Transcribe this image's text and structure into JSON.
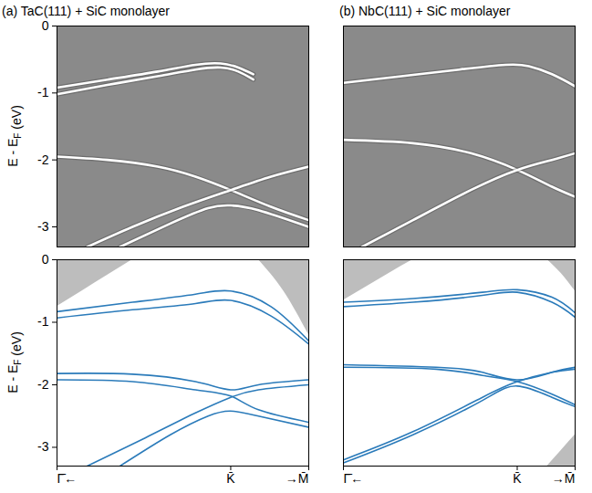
{
  "chart_data": [
    {
      "type": "line",
      "title": "(a) TaC(111) + SiC monolayer",
      "ylabel": "E - EF (eV)",
      "xlim": [
        0,
        1
      ],
      "ylim": [
        -3.3,
        0
      ],
      "yticks": [
        0,
        -1,
        -2,
        -3
      ],
      "tick_labels": "y",
      "series": [
        {
          "color": "#ffffff",
          "x": [
            0,
            0.2,
            0.4,
            0.55,
            0.65,
            0.72,
            0.78
          ],
          "values": [
            -1.02,
            -0.88,
            -0.75,
            -0.65,
            -0.62,
            -0.68,
            -0.8
          ]
        },
        {
          "color": "#ffffff",
          "x": [
            0,
            0.2,
            0.4,
            0.55,
            0.65,
            0.72,
            0.78
          ],
          "values": [
            -0.92,
            -0.8,
            -0.68,
            -0.58,
            -0.56,
            -0.62,
            -0.72
          ]
        },
        {
          "color": "#ffffff",
          "x": [
            0,
            0.2,
            0.4,
            0.55,
            0.69,
            0.85,
            1
          ],
          "values": [
            -1.95,
            -2.0,
            -2.1,
            -2.25,
            -2.45,
            -2.7,
            -2.9
          ]
        },
        {
          "color": "#ffffff",
          "x": [
            0.12,
            0.3,
            0.5,
            0.69,
            0.85,
            1
          ],
          "values": [
            -3.3,
            -3.0,
            -2.7,
            -2.45,
            -2.25,
            -2.1
          ]
        },
        {
          "color": "#ffffff",
          "x": [
            0.25,
            0.45,
            0.6,
            0.69,
            0.8,
            1
          ],
          "values": [
            -3.3,
            -2.95,
            -2.72,
            -2.68,
            -2.75,
            -3.0
          ]
        }
      ]
    },
    {
      "type": "line",
      "title": "(b) NbC(111) + SiC monolayer",
      "xlim": [
        0,
        1
      ],
      "ylim": [
        -3.3,
        0
      ],
      "tick_labels": false,
      "series": [
        {
          "color": "#ffffff",
          "x": [
            0,
            0.25,
            0.5,
            0.7,
            0.8,
            0.9,
            1
          ],
          "values": [
            -0.85,
            -0.75,
            -0.65,
            -0.58,
            -0.6,
            -0.72,
            -0.9
          ]
        },
        {
          "color": "#ffffff",
          "x": [
            0,
            0.3,
            0.55,
            0.75,
            0.9,
            1
          ],
          "values": [
            -1.7,
            -1.75,
            -1.9,
            -2.15,
            -2.4,
            -2.55
          ]
        },
        {
          "color": "#ffffff",
          "x": [
            0.08,
            0.3,
            0.55,
            0.75,
            0.9,
            1
          ],
          "values": [
            -3.3,
            -2.9,
            -2.45,
            -2.15,
            -2.0,
            -1.9
          ]
        }
      ]
    },
    {
      "type": "line",
      "ylabel": "E - EF (eV)",
      "xlim": [
        0,
        1
      ],
      "ylim": [
        -3.3,
        0
      ],
      "xticks": [
        {
          "value": 0,
          "label": "Γ̄←"
        },
        {
          "value": 0.69,
          "label": "K̄"
        },
        {
          "value": 1,
          "label": "→M̄"
        }
      ],
      "yticks": [
        0,
        -1,
        -2,
        -3
      ],
      "series": [
        {
          "type": "area",
          "color": "#bdbdbd",
          "x": [
            0,
            0.1,
            0.2,
            0.3
          ],
          "values": [
            -0.75,
            -0.5,
            -0.25,
            0
          ],
          "base": [
            0,
            0,
            0,
            0
          ]
        },
        {
          "type": "area",
          "color": "#bdbdbd",
          "x": [
            0.8,
            0.9,
            1
          ],
          "values": [
            0,
            -0.5,
            -1.2
          ],
          "base": [
            0,
            0,
            0
          ]
        },
        {
          "color": "#2b7bba",
          "x": [
            0,
            0.3,
            0.55,
            0.69,
            0.85,
            1
          ],
          "values": [
            -0.83,
            -0.68,
            -0.55,
            -0.5,
            -0.75,
            -1.3
          ]
        },
        {
          "color": "#2b7bba",
          "x": [
            0,
            0.3,
            0.55,
            0.69,
            0.85,
            1
          ],
          "values": [
            -0.93,
            -0.8,
            -0.7,
            -0.65,
            -0.9,
            -1.35
          ]
        },
        {
          "color": "#2b7bba",
          "x": [
            0,
            0.3,
            0.55,
            0.69,
            0.8,
            1
          ],
          "values": [
            -1.82,
            -1.83,
            -1.95,
            -2.08,
            -2.0,
            -1.92
          ]
        },
        {
          "color": "#2b7bba",
          "x": [
            0,
            0.3,
            0.55,
            0.69,
            0.8,
            1
          ],
          "values": [
            -1.92,
            -1.95,
            -2.08,
            -2.18,
            -2.4,
            -2.6
          ]
        },
        {
          "color": "#2b7bba",
          "x": [
            0.12,
            0.35,
            0.55,
            0.69,
            0.8,
            1
          ],
          "values": [
            -3.3,
            -2.85,
            -2.45,
            -2.2,
            -2.08,
            -2.0
          ]
        },
        {
          "color": "#2b7bba",
          "x": [
            0.25,
            0.45,
            0.6,
            0.69,
            0.8,
            1
          ],
          "values": [
            -3.3,
            -2.8,
            -2.5,
            -2.42,
            -2.5,
            -2.68
          ]
        }
      ]
    },
    {
      "type": "line",
      "xlim": [
        0,
        1
      ],
      "ylim": [
        -3.3,
        0
      ],
      "xticks": [
        {
          "value": 0,
          "label": "Γ̄←"
        },
        {
          "value": 0.75,
          "label": "K̄"
        },
        {
          "value": 1,
          "label": "→M̄"
        }
      ],
      "tick_labels": "x",
      "series": [
        {
          "type": "area",
          "color": "#bdbdbd",
          "x": [
            0,
            0.1,
            0.2,
            0.3
          ],
          "values": [
            -0.65,
            -0.43,
            -0.21,
            0
          ],
          "base": [
            0,
            0,
            0,
            0
          ]
        },
        {
          "type": "area",
          "color": "#bdbdbd",
          "x": [
            0.88,
            0.94,
            1
          ],
          "values": [
            0,
            -0.22,
            -0.5
          ],
          "base": [
            0,
            0,
            0
          ]
        },
        {
          "type": "area",
          "color": "#bdbdbd",
          "x": [
            0.88,
            0.94,
            1
          ],
          "values": [
            -3.3,
            -3.05,
            -2.8
          ],
          "base": [
            -3.3,
            -3.3,
            -3.3
          ]
        },
        {
          "color": "#2b7bba",
          "x": [
            0,
            0.3,
            0.6,
            0.75,
            0.9,
            1
          ],
          "values": [
            -0.68,
            -0.62,
            -0.52,
            -0.48,
            -0.6,
            -0.85
          ]
        },
        {
          "color": "#2b7bba",
          "x": [
            0,
            0.3,
            0.6,
            0.75,
            0.9,
            1
          ],
          "values": [
            -0.75,
            -0.68,
            -0.57,
            -0.52,
            -0.68,
            -0.92
          ]
        },
        {
          "color": "#2b7bba",
          "x": [
            0,
            0.4,
            0.6,
            0.75,
            0.9,
            1
          ],
          "values": [
            -1.68,
            -1.72,
            -1.8,
            -1.92,
            -1.8,
            -1.72
          ]
        },
        {
          "color": "#2b7bba",
          "x": [
            0,
            0.4,
            0.6,
            0.75,
            0.9,
            1
          ],
          "values": [
            -1.72,
            -1.75,
            -1.85,
            -1.95,
            -2.15,
            -2.32
          ]
        },
        {
          "color": "#2b7bba",
          "x": [
            0,
            0.3,
            0.6,
            0.75,
            0.9,
            1
          ],
          "values": [
            -3.2,
            -2.75,
            -2.2,
            -1.95,
            -1.8,
            -1.75
          ]
        },
        {
          "color": "#2b7bba",
          "x": [
            0,
            0.3,
            0.6,
            0.75,
            0.9,
            1
          ],
          "values": [
            -3.25,
            -2.8,
            -2.25,
            -2.02,
            -2.2,
            -2.35
          ]
        }
      ]
    }
  ]
}
